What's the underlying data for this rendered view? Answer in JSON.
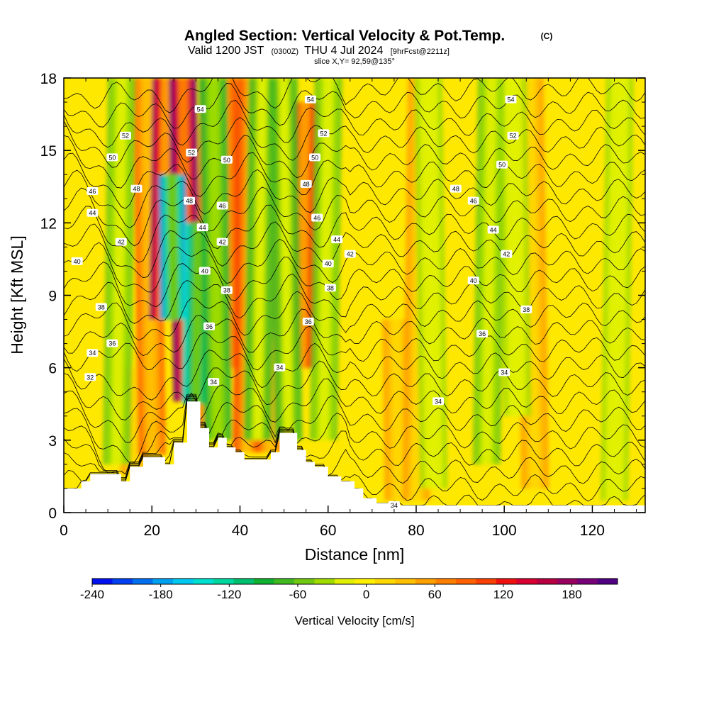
{
  "header": {
    "title": "Angled Section: Vertical Velocity & Pot.Temp.",
    "title_mark": "(C)",
    "valid_prefix": "Valid 1200 JST",
    "valid_utc": "(0300Z)",
    "valid_date": "THU 4 Jul 2024",
    "forecast": "[9hrFcst@2211z]",
    "slice": "slice X,Y= 92,59@135°"
  },
  "chart_data": {
    "type": "heatmap",
    "xlabel": "Distance [nm]",
    "ylabel": "Height [Kft MSL]",
    "xlim": [
      0,
      132
    ],
    "ylim": [
      0,
      18
    ],
    "x_ticks": [
      0,
      20,
      40,
      60,
      80,
      100,
      120
    ],
    "y_ticks": [
      0,
      3,
      6,
      9,
      12,
      15,
      18
    ],
    "colorbar": {
      "label": "Vertical Velocity [cm/s]",
      "range": [
        -240,
        220
      ],
      "ticks": [
        -240,
        -180,
        -120,
        -60,
        0,
        60,
        120,
        180
      ],
      "colors": [
        "#0010f0",
        "#0040f0",
        "#0070f0",
        "#00a0f0",
        "#00c8f0",
        "#00e0d0",
        "#00d8a0",
        "#00c070",
        "#10b030",
        "#40b820",
        "#70c810",
        "#a0dc00",
        "#e0f000",
        "#fff000",
        "#ffd800",
        "#ffc000",
        "#ffa000",
        "#ff8000",
        "#ff6000",
        "#f84000",
        "#f01010",
        "#d80030",
        "#b80040",
        "#980060",
        "#780078",
        "#500080"
      ]
    },
    "updrafts": [
      {
        "x": 16,
        "y0": 1.5,
        "y1": 6,
        "w": 60
      },
      {
        "x": 20,
        "y0": 2.4,
        "y1": 18,
        "w": 90
      },
      {
        "x": 22.5,
        "y0": 8,
        "y1": 18,
        "w": 180
      },
      {
        "x": 28,
        "y0": 4.6,
        "y1": 18,
        "w": 200
      },
      {
        "x": 33,
        "y0": 3.5,
        "y1": 18,
        "w": 80
      },
      {
        "x": 37,
        "y0": 6,
        "y1": 18,
        "w": 110
      },
      {
        "x": 41.5,
        "y0": 2.5,
        "y1": 18,
        "w": 110
      },
      {
        "x": 47,
        "y0": 2.5,
        "y1": 18,
        "w": 90
      },
      {
        "x": 54,
        "y0": 6,
        "y1": 17,
        "w": 150
      },
      {
        "x": 76,
        "y0": 0.5,
        "y1": 8,
        "w": 50
      },
      {
        "x": 80,
        "y0": 0.5,
        "y1": 18,
        "w": 60
      },
      {
        "x": 107,
        "y0": 1,
        "y1": 18,
        "w": 50
      }
    ],
    "downdrafts": [
      {
        "x": 12,
        "y0": 2,
        "y1": 18,
        "w": -60
      },
      {
        "x": 25,
        "y0": 8,
        "y1": 14,
        "w": -180
      },
      {
        "x": 30,
        "y0": 4.5,
        "y1": 12,
        "w": -150
      },
      {
        "x": 35,
        "y0": 3,
        "y1": 18,
        "w": -90
      },
      {
        "x": 44,
        "y0": 3,
        "y1": 18,
        "w": -70
      },
      {
        "x": 51,
        "y0": 3,
        "y1": 18,
        "w": -80
      },
      {
        "x": 59,
        "y0": 3,
        "y1": 18,
        "w": -60
      },
      {
        "x": 84,
        "y0": 1,
        "y1": 18,
        "w": -40
      },
      {
        "x": 96,
        "y0": 2,
        "y1": 18,
        "w": -50
      },
      {
        "x": 103,
        "y0": 4,
        "y1": 18,
        "w": -35
      },
      {
        "x": 125,
        "y0": 0.5,
        "y1": 18,
        "w": -35
      }
    ],
    "terrain": [
      [
        0,
        1
      ],
      [
        4,
        1
      ],
      [
        4,
        1.3
      ],
      [
        6,
        1.3
      ],
      [
        6,
        1.6
      ],
      [
        13,
        1.6
      ],
      [
        13,
        1.3
      ],
      [
        15,
        1.3
      ],
      [
        15,
        1.9
      ],
      [
        18,
        1.9
      ],
      [
        18,
        2.3
      ],
      [
        23,
        2.3
      ],
      [
        23,
        2
      ],
      [
        25,
        2
      ],
      [
        25,
        2.9
      ],
      [
        28,
        2.9
      ],
      [
        28,
        4.6
      ],
      [
        31,
        4.6
      ],
      [
        31,
        3.5
      ],
      [
        33,
        3.5
      ],
      [
        33,
        2.7
      ],
      [
        35,
        2.7
      ],
      [
        35,
        3.1
      ],
      [
        37,
        3.1
      ],
      [
        37,
        2.7
      ],
      [
        39,
        2.7
      ],
      [
        39,
        2.5
      ],
      [
        41,
        2.5
      ],
      [
        41,
        2.2
      ],
      [
        47,
        2.2
      ],
      [
        47,
        2.5
      ],
      [
        49,
        2.5
      ],
      [
        49,
        3.3
      ],
      [
        53,
        3.3
      ],
      [
        53,
        2.6
      ],
      [
        55,
        2.6
      ],
      [
        55,
        2.1
      ],
      [
        57,
        2.1
      ],
      [
        57,
        1.9
      ],
      [
        60,
        1.9
      ],
      [
        60,
        1.5
      ],
      [
        63,
        1.5
      ],
      [
        63,
        1.3
      ],
      [
        66,
        1.3
      ],
      [
        66,
        1
      ],
      [
        68,
        1
      ],
      [
        68,
        0.6
      ],
      [
        71,
        0.6
      ],
      [
        71,
        0.4
      ],
      [
        76,
        0.4
      ],
      [
        76,
        0.3
      ],
      [
        132,
        0.3
      ]
    ],
    "isentropes": {
      "levels": [
        31,
        32,
        33,
        34,
        35,
        36,
        37,
        38,
        39,
        40,
        41,
        42,
        43,
        44,
        45,
        46,
        47,
        48,
        49,
        50,
        51,
        52,
        53,
        54,
        55
      ],
      "labels": [
        {
          "text": "32",
          "x": 6,
          "y": 5.6
        },
        {
          "text": "34",
          "x": 6.5,
          "y": 6.6
        },
        {
          "text": "36",
          "x": 11,
          "y": 7
        },
        {
          "text": "38",
          "x": 8.5,
          "y": 8.5
        },
        {
          "text": "40",
          "x": 3,
          "y": 10.4
        },
        {
          "text": "42",
          "x": 13,
          "y": 11.2
        },
        {
          "text": "44",
          "x": 6.5,
          "y": 12.4
        },
        {
          "text": "46",
          "x": 6.5,
          "y": 13.3
        },
        {
          "text": "48",
          "x": 16.5,
          "y": 13.4
        },
        {
          "text": "50",
          "x": 11,
          "y": 14.7
        },
        {
          "text": "52",
          "x": 14,
          "y": 15.6
        },
        {
          "text": "54",
          "x": 31,
          "y": 16.7
        },
        {
          "text": "52",
          "x": 29,
          "y": 14.9
        },
        {
          "text": "50",
          "x": 37,
          "y": 14.6
        },
        {
          "text": "48",
          "x": 28.5,
          "y": 12.9
        },
        {
          "text": "46",
          "x": 36,
          "y": 12.7
        },
        {
          "text": "44",
          "x": 31.5,
          "y": 11.8
        },
        {
          "text": "42",
          "x": 36,
          "y": 11.2
        },
        {
          "text": "40",
          "x": 32,
          "y": 10
        },
        {
          "text": "38",
          "x": 37,
          "y": 9.2
        },
        {
          "text": "36",
          "x": 33,
          "y": 7.7
        },
        {
          "text": "34",
          "x": 34,
          "y": 5.4
        },
        {
          "text": "54",
          "x": 56,
          "y": 17.1
        },
        {
          "text": "52",
          "x": 59,
          "y": 15.7
        },
        {
          "text": "50",
          "x": 57,
          "y": 14.7
        },
        {
          "text": "48",
          "x": 55,
          "y": 13.6
        },
        {
          "text": "46",
          "x": 57.5,
          "y": 12.2
        },
        {
          "text": "44",
          "x": 62,
          "y": 11.3
        },
        {
          "text": "42",
          "x": 65,
          "y": 10.7
        },
        {
          "text": "40",
          "x": 60,
          "y": 10.3
        },
        {
          "text": "38",
          "x": 60.5,
          "y": 9.3
        },
        {
          "text": "36",
          "x": 55.5,
          "y": 7.9
        },
        {
          "text": "34",
          "x": 49,
          "y": 6
        },
        {
          "text": "34",
          "x": 75,
          "y": 0.3
        },
        {
          "text": "34",
          "x": 85,
          "y": 4.6
        },
        {
          "text": "36",
          "x": 95,
          "y": 7.4
        },
        {
          "text": "38",
          "x": 105,
          "y": 8.4
        },
        {
          "text": "40",
          "x": 93,
          "y": 9.6
        },
        {
          "text": "42",
          "x": 100.5,
          "y": 10.7
        },
        {
          "text": "44",
          "x": 97.5,
          "y": 11.7
        },
        {
          "text": "46",
          "x": 93,
          "y": 12.9
        },
        {
          "text": "48",
          "x": 89,
          "y": 13.4
        },
        {
          "text": "50",
          "x": 99.5,
          "y": 14.4
        },
        {
          "text": "52",
          "x": 102,
          "y": 15.6
        },
        {
          "text": "54",
          "x": 101.5,
          "y": 17.1
        },
        {
          "text": "34",
          "x": 100,
          "y": 5.8
        }
      ]
    }
  }
}
